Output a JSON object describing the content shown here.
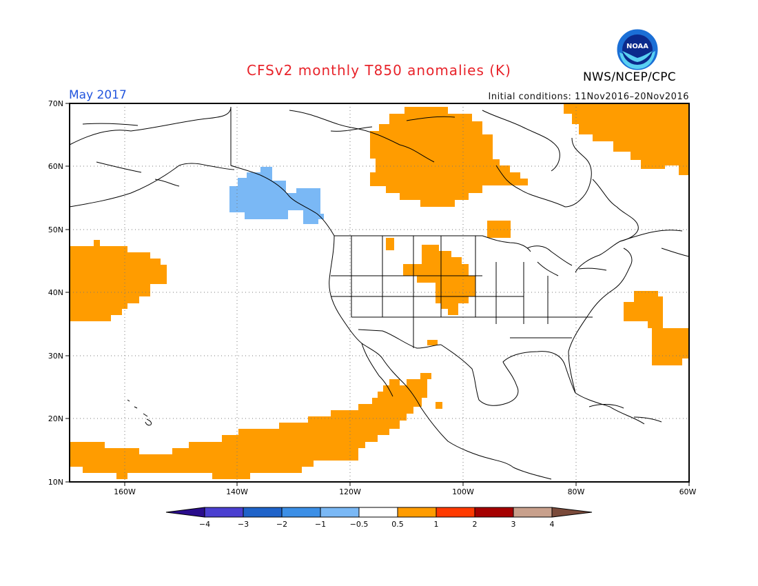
{
  "title": "CFSv2 monthly T850 anomalies (K)",
  "month": "May 2017",
  "initial_conditions": "Initial conditions: 11Nov2016–20Nov2016",
  "agency": "NWS/NCEP/CPC",
  "logo_text": "NOAA",
  "lat_labels": [
    "70N",
    "60N",
    "50N",
    "40N",
    "30N",
    "20N",
    "10N"
  ],
  "lon_labels": [
    "160W",
    "140W",
    "120W",
    "100W",
    "80W",
    "60W"
  ],
  "colorbar": {
    "labels": [
      "−4",
      "−3",
      "−2",
      "−1",
      "−0.5",
      "0.5",
      "1",
      "2",
      "3",
      "4"
    ],
    "colors": {
      "below_-4": "#2a0d8c",
      "-4_-3": "#4a3fd0",
      "-3_-2": "#1f63c9",
      "-2_-1": "#3c8fe6",
      "-1_-0.5": "#7ab8f5",
      "-0.5_0.5": "#ffffff",
      "0.5_1": "#ff9c00",
      "1_2": "#ff3a00",
      "2_3": "#a50000",
      "3_4": "#c8a08c",
      "above_4": "#7a4a3a"
    }
  },
  "anomaly_colors": {
    "positive_0.5_1": "#ff9c00",
    "negative_-1_-0.5": "#7ab8f5"
  }
}
